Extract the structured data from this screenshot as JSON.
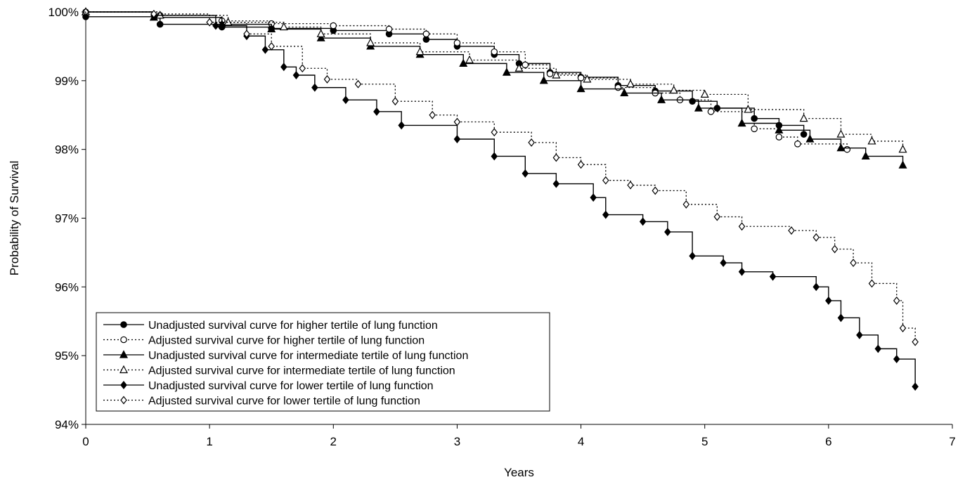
{
  "chart_data": {
    "type": "line",
    "title": "",
    "xlabel": "Years",
    "ylabel": "Probability of Survival",
    "xlim": [
      0,
      7
    ],
    "ylim": [
      94,
      100
    ],
    "xticks": [
      0,
      1,
      2,
      3,
      4,
      5,
      6,
      7
    ],
    "yticks": [
      94,
      95,
      96,
      97,
      98,
      99,
      100
    ],
    "ytick_labels": [
      "94%",
      "95%",
      "96%",
      "97%",
      "98%",
      "99%",
      "100%"
    ],
    "grid": false,
    "legend_position": "bottom-left",
    "series": [
      {
        "name": "Unadjusted survival curve for higher tertile of lung function",
        "line": "solid",
        "marker": "circle",
        "fill": "filled",
        "x": [
          0,
          0.6,
          1.1,
          1.5,
          2.0,
          2.45,
          2.75,
          3.0,
          3.3,
          3.5,
          3.75,
          4.0,
          4.3,
          4.6,
          4.9,
          5.1,
          5.4,
          5.6,
          5.8
        ],
        "y": [
          99.93,
          99.82,
          99.78,
          99.76,
          99.73,
          99.68,
          99.6,
          99.5,
          99.38,
          99.25,
          99.12,
          99.05,
          98.93,
          98.85,
          98.7,
          98.6,
          98.45,
          98.35,
          98.22
        ]
      },
      {
        "name": "Adjusted survival curve for higher tertile of lung function",
        "line": "dotted",
        "marker": "circle",
        "fill": "open",
        "x": [
          0,
          0.6,
          1.1,
          1.5,
          2.0,
          2.45,
          2.75,
          3.0,
          3.3,
          3.55,
          3.75,
          4.0,
          4.3,
          4.6,
          4.8,
          5.05,
          5.4,
          5.6,
          5.75,
          6.15
        ],
        "y": [
          100.0,
          99.95,
          99.87,
          99.83,
          99.8,
          99.75,
          99.68,
          99.55,
          99.42,
          99.23,
          99.1,
          99.04,
          98.9,
          98.82,
          98.72,
          98.55,
          98.3,
          98.18,
          98.08,
          98.0
        ]
      },
      {
        "name": "Unadjusted survival curve for intermediate tertile of lung function",
        "line": "solid",
        "marker": "triangle",
        "fill": "filled",
        "x": [
          0,
          0.55,
          1.1,
          1.5,
          1.9,
          2.3,
          2.7,
          3.05,
          3.4,
          3.7,
          4.0,
          4.35,
          4.65,
          4.95,
          5.3,
          5.6,
          5.85,
          6.1,
          6.3,
          6.6
        ],
        "y": [
          100.0,
          99.92,
          99.82,
          99.75,
          99.62,
          99.5,
          99.38,
          99.25,
          99.12,
          99.0,
          98.88,
          98.82,
          98.72,
          98.6,
          98.38,
          98.28,
          98.15,
          98.02,
          97.9,
          97.77
        ]
      },
      {
        "name": "Adjusted survival curve for intermediate tertile of lung function",
        "line": "dotted",
        "marker": "triangle",
        "fill": "open",
        "x": [
          0,
          0.6,
          1.15,
          1.6,
          1.9,
          2.3,
          2.7,
          3.1,
          3.5,
          3.8,
          4.05,
          4.4,
          4.75,
          5.0,
          5.35,
          5.8,
          6.1,
          6.35,
          6.6
        ],
        "y": [
          100.0,
          99.95,
          99.85,
          99.78,
          99.68,
          99.55,
          99.42,
          99.3,
          99.18,
          99.08,
          99.02,
          98.95,
          98.86,
          98.8,
          98.58,
          98.45,
          98.22,
          98.12,
          98.0
        ]
      },
      {
        "name": "Unadjusted survival curve for lower tertile of lung function",
        "line": "solid",
        "marker": "diamond",
        "fill": "filled",
        "x": [
          0,
          0.55,
          1.05,
          1.3,
          1.45,
          1.6,
          1.7,
          1.85,
          2.1,
          2.35,
          2.55,
          3.0,
          3.3,
          3.55,
          3.8,
          4.1,
          4.2,
          4.5,
          4.7,
          4.9,
          5.15,
          5.3,
          5.55,
          5.9,
          6.0,
          6.1,
          6.25,
          6.4,
          6.55,
          6.7
        ],
        "y": [
          100.0,
          99.95,
          99.8,
          99.65,
          99.45,
          99.2,
          99.08,
          98.9,
          98.72,
          98.55,
          98.35,
          98.15,
          97.9,
          97.65,
          97.5,
          97.3,
          97.05,
          96.95,
          96.8,
          96.45,
          96.35,
          96.22,
          96.15,
          96.0,
          95.8,
          95.55,
          95.3,
          95.1,
          94.95,
          94.55
        ]
      },
      {
        "name": "Adjusted survival curve for lower tertile of lung function",
        "line": "dotted",
        "marker": "diamond",
        "fill": "open",
        "x": [
          0,
          0.55,
          1.0,
          1.3,
          1.5,
          1.75,
          1.95,
          2.2,
          2.5,
          2.8,
          3.0,
          3.3,
          3.6,
          3.8,
          4.0,
          4.2,
          4.4,
          4.6,
          4.85,
          5.1,
          5.3,
          5.7,
          5.9,
          6.05,
          6.2,
          6.35,
          6.55,
          6.6,
          6.7
        ],
        "y": [
          100.0,
          99.97,
          99.85,
          99.68,
          99.5,
          99.18,
          99.02,
          98.95,
          98.7,
          98.5,
          98.4,
          98.25,
          98.1,
          97.88,
          97.78,
          97.55,
          97.48,
          97.4,
          97.2,
          97.02,
          96.88,
          96.82,
          96.72,
          96.55,
          96.35,
          96.05,
          95.8,
          95.4,
          95.2
        ]
      }
    ]
  }
}
